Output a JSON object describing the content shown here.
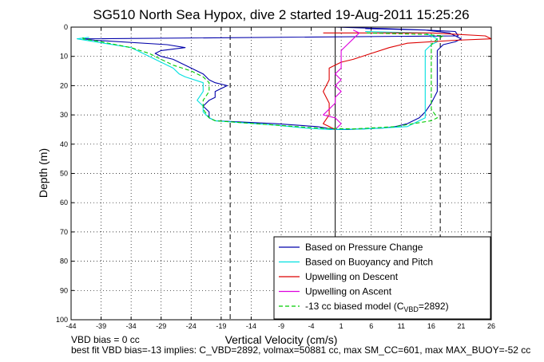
{
  "chart_data": {
    "type": "line",
    "title": "SG510 North Sea Hypox, dive 2 started 19-Aug-2011 15:25:26",
    "xlabel": "Vertical Velocity (cm/s)",
    "ylabel": "Depth (m)",
    "xlim": [
      -44,
      26
    ],
    "ylim": [
      0,
      100
    ],
    "y_reversed": true,
    "grid": true,
    "xticks": [
      -44,
      -39,
      -34,
      -29,
      -24,
      -19,
      -14,
      -9,
      -4,
      1,
      6,
      11,
      16,
      21,
      26
    ],
    "yticks": [
      0,
      10,
      20,
      30,
      40,
      50,
      60,
      70,
      80,
      90,
      100
    ],
    "legend_position": "bottom-right",
    "vlines": [
      {
        "x": 0,
        "style": "solid"
      },
      {
        "x": -17.5,
        "style": "dashed"
      },
      {
        "x": 17.5,
        "style": "dashed"
      }
    ],
    "series": [
      {
        "name": "Based on Pressure Change",
        "color": "#0000aa",
        "style": "solid",
        "points": [
          [
            0,
            0
          ],
          [
            8,
            0.5
          ],
          [
            15,
            1
          ],
          [
            20,
            1.5
          ],
          [
            20.5,
            3
          ],
          [
            -42,
            4
          ],
          [
            -40,
            4.5
          ],
          [
            -28,
            6
          ],
          [
            -25,
            7
          ],
          [
            -29,
            8
          ],
          [
            -30,
            9
          ],
          [
            -29,
            10
          ],
          [
            -27,
            11
          ],
          [
            -25,
            13
          ],
          [
            -24,
            14
          ],
          [
            -22,
            16
          ],
          [
            -21,
            18
          ],
          [
            -20,
            19
          ],
          [
            -18,
            20
          ],
          [
            -20,
            22
          ],
          [
            -20,
            24
          ],
          [
            -21,
            25
          ],
          [
            -22,
            27
          ],
          [
            -21,
            29
          ],
          [
            -21,
            31
          ],
          [
            -20,
            32
          ],
          [
            -10,
            33
          ],
          [
            -3,
            34
          ],
          [
            0,
            35
          ],
          [
            2,
            35
          ],
          [
            8,
            34.5
          ],
          [
            10,
            34
          ],
          [
            12,
            33
          ],
          [
            14,
            31
          ],
          [
            15,
            29
          ],
          [
            16,
            26
          ],
          [
            17,
            22
          ],
          [
            17,
            16
          ],
          [
            17,
            12
          ],
          [
            17,
            8
          ],
          [
            18,
            6
          ],
          [
            20,
            5
          ],
          [
            21,
            4
          ],
          [
            20,
            3
          ],
          [
            19,
            2
          ],
          [
            15,
            1
          ],
          [
            5,
            0.5
          ]
        ]
      },
      {
        "name": "Based on Buoyancy and Pitch",
        "color": "#00e0e0",
        "style": "solid",
        "points": [
          [
            -41,
            3.5
          ],
          [
            -43,
            4
          ],
          [
            -40,
            5
          ],
          [
            -34,
            7
          ],
          [
            -32,
            9
          ],
          [
            -30,
            11
          ],
          [
            -27,
            14
          ],
          [
            -26,
            16
          ],
          [
            -25,
            17
          ],
          [
            -22,
            19
          ],
          [
            -22,
            22
          ],
          [
            -23,
            25
          ],
          [
            -22,
            27
          ],
          [
            -22,
            29
          ],
          [
            -21,
            31
          ],
          [
            -20,
            32
          ],
          [
            -10,
            33.5
          ],
          [
            -5,
            34.5
          ],
          [
            -1,
            35
          ],
          [
            5,
            34.8
          ],
          [
            12,
            34
          ],
          [
            13,
            33
          ],
          [
            15,
            31
          ],
          [
            15,
            28
          ],
          [
            15,
            24
          ],
          [
            15,
            18
          ],
          [
            15,
            12
          ],
          [
            15,
            8
          ],
          [
            16,
            6
          ],
          [
            17,
            5
          ],
          [
            17,
            4
          ],
          [
            16,
            3
          ],
          [
            15,
            2
          ],
          [
            5,
            1.5
          ]
        ]
      },
      {
        "name": "Upwelling on Descent",
        "color": "#dd0000",
        "style": "solid",
        "points": [
          [
            -2,
            2
          ],
          [
            16,
            2
          ],
          [
            25,
            3
          ],
          [
            26,
            4
          ],
          [
            20,
            4.5
          ],
          [
            12,
            5.5
          ],
          [
            9,
            7
          ],
          [
            6,
            9
          ],
          [
            3,
            11
          ],
          [
            1,
            12
          ],
          [
            -1,
            14
          ],
          [
            -1,
            16
          ],
          [
            -1,
            18
          ],
          [
            -2,
            22
          ],
          [
            -1,
            26
          ],
          [
            -1,
            30
          ],
          [
            -2,
            33
          ],
          [
            -1,
            34
          ],
          [
            0,
            35
          ]
        ]
      },
      {
        "name": "Upwelling on Ascent",
        "color": "#dd00dd",
        "style": "solid",
        "points": [
          [
            0,
            35
          ],
          [
            1,
            33
          ],
          [
            0,
            31
          ],
          [
            -2,
            30
          ],
          [
            -1,
            28
          ],
          [
            0,
            26
          ],
          [
            0,
            24
          ],
          [
            1,
            22
          ],
          [
            0,
            20
          ],
          [
            1,
            18
          ],
          [
            0,
            16
          ],
          [
            1,
            14
          ],
          [
            1,
            12
          ],
          [
            1,
            10
          ],
          [
            1,
            8
          ],
          [
            2,
            6
          ],
          [
            3,
            4
          ],
          [
            4,
            2
          ],
          [
            3,
            1
          ]
        ]
      },
      {
        "name": "-13 cc biased model (C_VBD=2892)",
        "color": "#00cc00",
        "style": "dashed",
        "points": [
          [
            -42,
            3.5
          ],
          [
            -42,
            4
          ],
          [
            -39,
            5
          ],
          [
            -34,
            7
          ],
          [
            -31,
            9
          ],
          [
            -29,
            11
          ],
          [
            -27,
            13
          ],
          [
            -24,
            15
          ],
          [
            -22,
            17
          ],
          [
            -21,
            19
          ],
          [
            -21,
            22
          ],
          [
            -22,
            25
          ],
          [
            -22,
            28
          ],
          [
            -21,
            31
          ],
          [
            -20,
            32
          ],
          [
            -10,
            33.5
          ],
          [
            -3,
            34.5
          ],
          [
            3,
            34.8
          ],
          [
            10,
            34
          ],
          [
            13,
            33
          ],
          [
            16,
            32
          ],
          [
            17,
            31
          ],
          [
            16,
            28
          ],
          [
            16,
            22
          ],
          [
            16,
            15
          ],
          [
            16,
            10
          ],
          [
            16,
            6
          ],
          [
            17,
            4
          ],
          [
            18,
            3
          ],
          [
            15,
            2.5
          ],
          [
            5,
            2
          ]
        ]
      }
    ],
    "legend": {
      "entries": [
        {
          "label": "Based on Pressure Change",
          "color": "#0000aa",
          "dashed": false
        },
        {
          "label": "Based on Buoyancy and Pitch",
          "color": "#00e0e0",
          "dashed": false
        },
        {
          "label": "Upwelling on Descent",
          "color": "#dd0000",
          "dashed": false
        },
        {
          "label": "Upwelling on Ascent",
          "color": "#dd00dd",
          "dashed": false
        },
        {
          "label": "-13 cc biased model (C",
          "sub": "VBD",
          "suffix": "=2892)",
          "color": "#00cc00",
          "dashed": true
        }
      ]
    },
    "annotations": [
      "VBD bias = 0 cc",
      "best fit VBD bias=-13 implies: C_VBD=2892, volmax=50881 cc, max SM_CC=601, max MAX_BUOY=-52 cc"
    ]
  }
}
